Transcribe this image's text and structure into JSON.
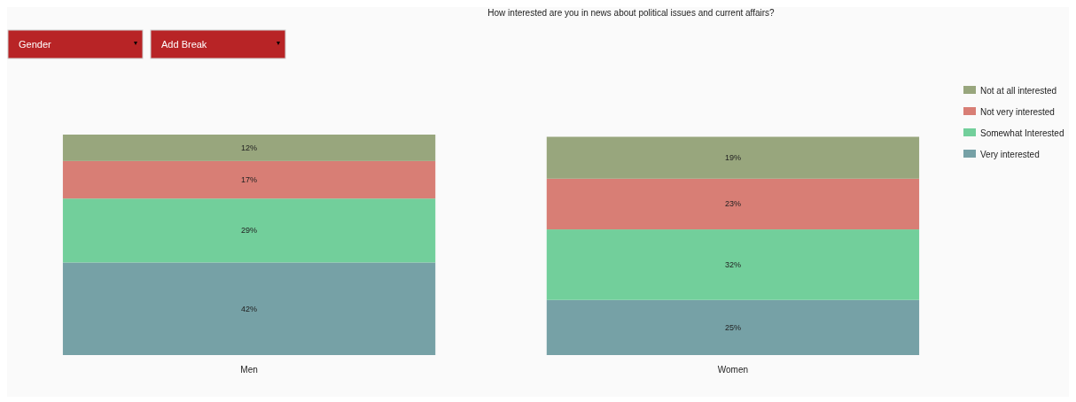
{
  "chart_data": {
    "type": "bar",
    "title": "How interested are you in news about political issues and current affairs?",
    "categories": [
      "Men",
      "Women"
    ],
    "stacked": true,
    "legend": "top right",
    "annotations": [
      "Gender",
      "Add Break"
    ],
    "series": [
      {
        "name": "Very interested",
        "color": "#76a1a6",
        "values": [
          42,
          25
        ],
        "value_labels": [
          "42%",
          "25%"
        ]
      },
      {
        "name": "Somewhat Interested",
        "color": "#72cf9b",
        "values": [
          29,
          32
        ],
        "value_labels": [
          "29%",
          "32%"
        ]
      },
      {
        "name": "Not very interested",
        "color": "#d87e75",
        "values": [
          17,
          23
        ],
        "value_labels": [
          "17%",
          "23%"
        ]
      },
      {
        "name": "Not at all interested",
        "color": "#98a67d",
        "values": [
          12,
          19
        ],
        "value_labels": [
          "12%",
          "19%"
        ]
      }
    ]
  }
}
